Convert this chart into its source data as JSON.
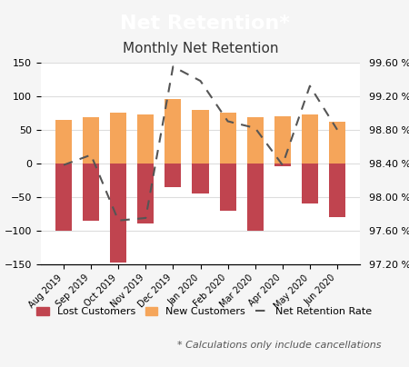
{
  "title_banner": "Net Retention*",
  "title_banner_color": "#c0444f",
  "title_banner_text_color": "#ffffff",
  "chart_title": "Monthly Net Retention",
  "months": [
    "Aug 2019",
    "Sep 2019",
    "Oct 2019",
    "Nov 2019",
    "Dec 2019",
    "Jan 2020",
    "Feb 2020",
    "Mar 2020",
    "Apr 2020",
    "May 2020",
    "Jun 2020"
  ],
  "lost_customers": [
    -100,
    -85,
    -148,
    -90,
    -35,
    -45,
    -70,
    -100,
    -5,
    -60,
    -80
  ],
  "new_customers": [
    65,
    68,
    75,
    72,
    95,
    80,
    75,
    68,
    70,
    72,
    62
  ],
  "net_retention_rate": [
    98.38,
    98.5,
    97.72,
    97.75,
    99.55,
    99.38,
    98.9,
    98.82,
    98.38,
    99.32,
    98.8
  ],
  "bar_color_lost": "#c0444f",
  "bar_color_new": "#f5a55a",
  "line_color": "#555555",
  "ylim_left": [
    -150,
    150
  ],
  "ylim_right": [
    97.2,
    99.6
  ],
  "yticks_left": [
    -150,
    -100,
    -50,
    0,
    50,
    100,
    150
  ],
  "yticks_right": [
    97.2,
    97.6,
    98.0,
    98.4,
    98.8,
    99.2,
    99.6
  ],
  "ytick_right_labels": [
    "97.20 %",
    "97.60 %",
    "98.00 %",
    "98.40 %",
    "98.80 %",
    "99.20 %",
    "99.60 %"
  ],
  "footer_note": "* Calculations only include cancellations",
  "legend_lost": "Lost Customers",
  "legend_new": "New Customers",
  "legend_line": "Net Retention Rate",
  "background_color": "#f5f5f5",
  "chart_bg": "#ffffff",
  "grid_color": "#dddddd"
}
